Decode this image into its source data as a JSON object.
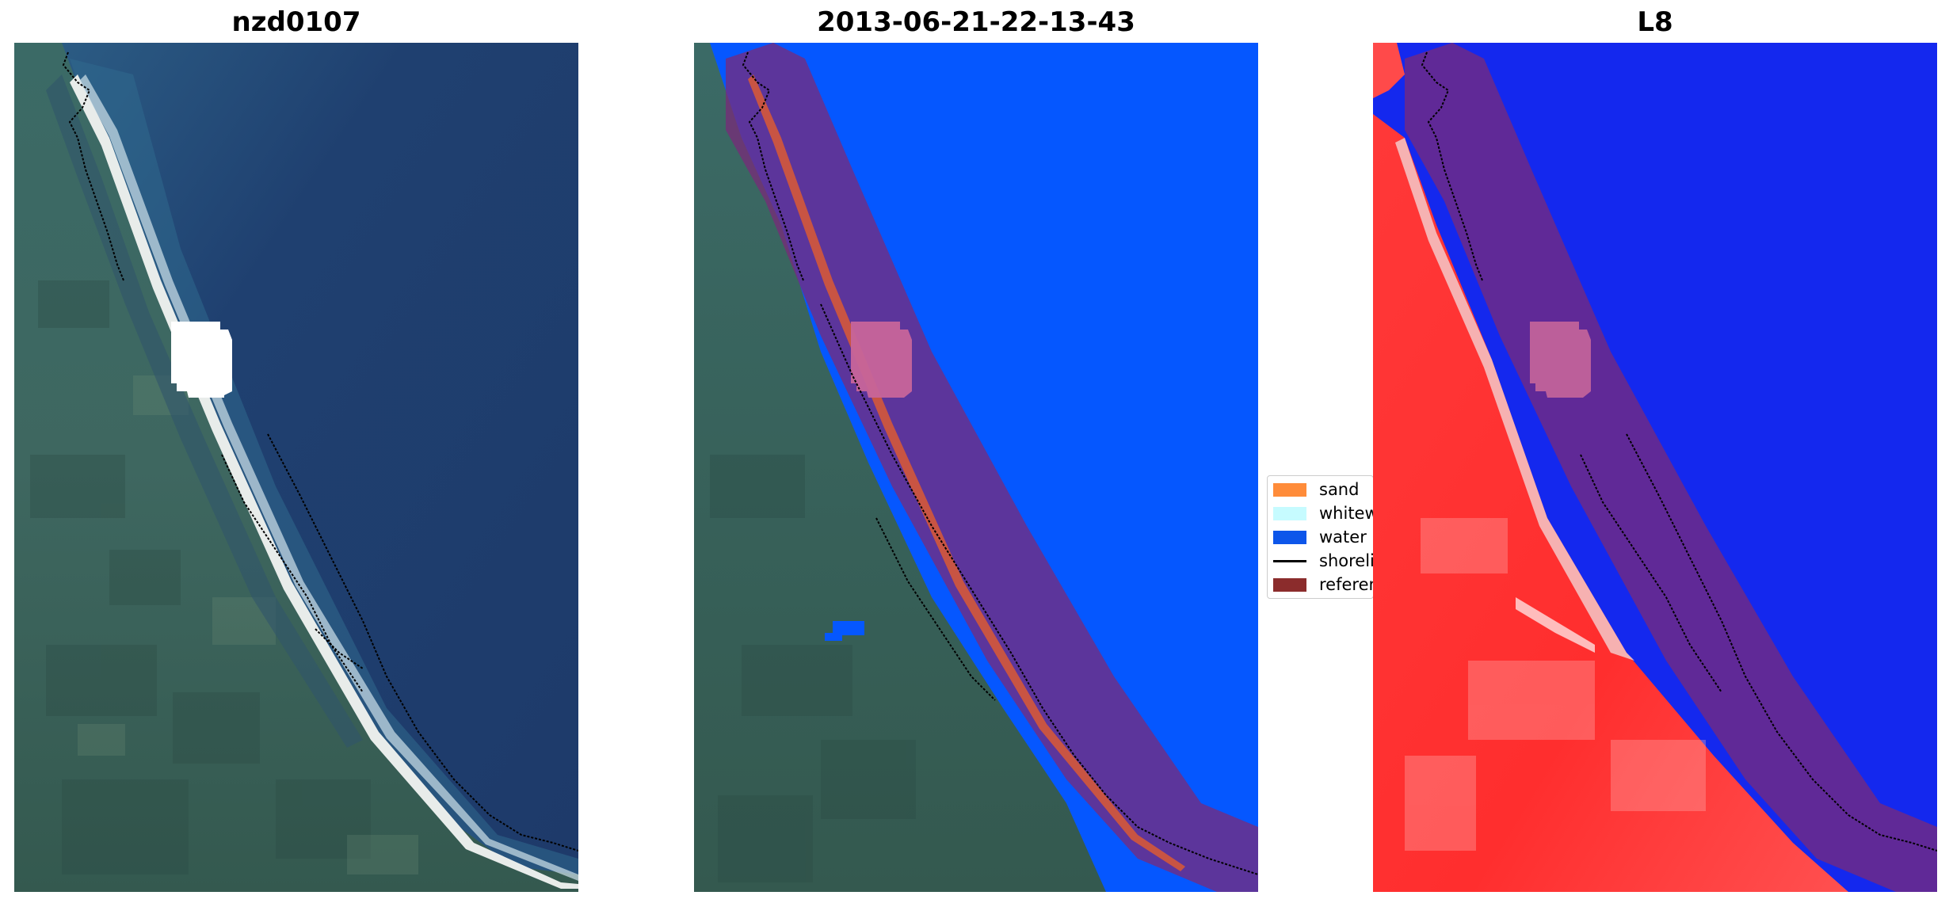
{
  "panels": [
    {
      "title": "nzd0107",
      "view": "rgb"
    },
    {
      "title": "2013-06-21-22-13-43",
      "view": "classified"
    },
    {
      "title": "L8",
      "view": "mndwi"
    }
  ],
  "legend": {
    "items": [
      {
        "label": "sand",
        "color": "#ff8c3a",
        "kind": "patch"
      },
      {
        "label": "whitewater",
        "color": "#c6fbff",
        "kind": "patch"
      },
      {
        "label": "water",
        "color": "#0d56ea",
        "kind": "patch"
      },
      {
        "label": "shoreline",
        "color": "#000000",
        "kind": "line"
      },
      {
        "label": "reference shoreline buffer",
        "color": "#8b2c2c",
        "kind": "patch"
      }
    ]
  },
  "colors": {
    "ocean_rgb": "#1f3f70",
    "land_rgb": "#3d6660",
    "water_class": "#0557ff",
    "buffer": "#7a2a7a",
    "mndwi_water": "#1428ee",
    "mndwi_land": "#ff2a2a",
    "cloud_mask": "#ffffff"
  }
}
